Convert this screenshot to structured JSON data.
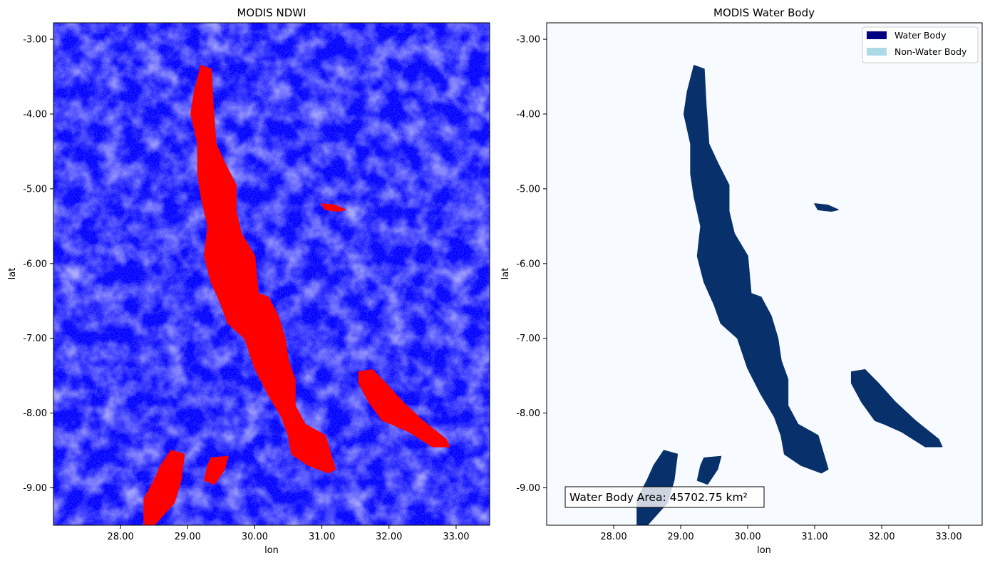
{
  "figure": {
    "panels": [
      {
        "title": "MODIS NDWI",
        "xlabel": "lon",
        "ylabel": "lat"
      },
      {
        "title": "MODIS Water Body",
        "xlabel": "lon",
        "ylabel": "lat"
      }
    ],
    "annotation": "Water Body Area: 45702.75 km²"
  },
  "chart_data": [
    {
      "type": "heatmap",
      "title": "MODIS NDWI",
      "xlabel": "lon",
      "ylabel": "lat",
      "xlim": [
        27.0,
        33.5
      ],
      "ylim": [
        -9.5,
        -2.78
      ],
      "xticks": [
        28.0,
        29.0,
        30.0,
        31.0,
        32.0,
        33.0
      ],
      "xtick_labels": [
        "28.00",
        "29.00",
        "30.00",
        "31.00",
        "32.00",
        "33.00"
      ],
      "yticks": [
        -3.0,
        -4.0,
        -5.0,
        -6.0,
        -7.0,
        -8.0,
        -9.0
      ],
      "ytick_labels": [
        "-3.00",
        "-4.00",
        "-5.00",
        "-6.00",
        "-7.00",
        "-8.00",
        "-9.00"
      ],
      "colormap": "bwr",
      "colors": {
        "low": "#0000ff",
        "mid": "#ffffff",
        "high": "#ff0000"
      },
      "grid": false,
      "water_bodies": [
        {
          "id": "lake-tanganyika",
          "outline": [
            [
              29.2,
              -3.35
            ],
            [
              29.35,
              -3.4
            ],
            [
              29.38,
              -3.9
            ],
            [
              29.42,
              -4.4
            ],
            [
              29.55,
              -4.65
            ],
            [
              29.72,
              -4.95
            ],
            [
              29.72,
              -5.3
            ],
            [
              29.8,
              -5.6
            ],
            [
              30.0,
              -5.9
            ],
            [
              30.05,
              -6.4
            ],
            [
              30.2,
              -6.45
            ],
            [
              30.35,
              -6.7
            ],
            [
              30.45,
              -7.0
            ],
            [
              30.5,
              -7.3
            ],
            [
              30.6,
              -7.55
            ],
            [
              30.6,
              -7.9
            ],
            [
              30.75,
              -8.15
            ],
            [
              31.05,
              -8.3
            ],
            [
              31.2,
              -8.75
            ],
            [
              31.1,
              -8.8
            ],
            [
              30.8,
              -8.7
            ],
            [
              30.55,
              -8.55
            ],
            [
              30.5,
              -8.3
            ],
            [
              30.4,
              -8.05
            ],
            [
              30.2,
              -7.75
            ],
            [
              30.0,
              -7.4
            ],
            [
              29.85,
              -7.0
            ],
            [
              29.6,
              -6.8
            ],
            [
              29.5,
              -6.55
            ],
            [
              29.35,
              -6.25
            ],
            [
              29.25,
              -5.9
            ],
            [
              29.3,
              -5.5
            ],
            [
              29.2,
              -5.1
            ],
            [
              29.15,
              -4.8
            ],
            [
              29.15,
              -4.4
            ],
            [
              29.05,
              -4.0
            ],
            [
              29.1,
              -3.7
            ]
          ]
        },
        {
          "id": "lake-rukwa",
          "outline": [
            [
              31.55,
              -7.45
            ],
            [
              31.75,
              -7.42
            ],
            [
              31.95,
              -7.6
            ],
            [
              32.2,
              -7.85
            ],
            [
              32.5,
              -8.1
            ],
            [
              32.85,
              -8.35
            ],
            [
              32.9,
              -8.45
            ],
            [
              32.65,
              -8.45
            ],
            [
              32.3,
              -8.25
            ],
            [
              32.05,
              -8.15
            ],
            [
              31.9,
              -8.1
            ],
            [
              31.7,
              -7.85
            ],
            [
              31.55,
              -7.6
            ]
          ]
        },
        {
          "id": "lake-mweru",
          "outline": [
            [
              28.75,
              -8.5
            ],
            [
              28.95,
              -8.55
            ],
            [
              28.9,
              -8.9
            ],
            [
              28.8,
              -9.2
            ],
            [
              28.65,
              -9.35
            ],
            [
              28.5,
              -9.5
            ],
            [
              28.35,
              -9.5
            ],
            [
              28.35,
              -9.15
            ],
            [
              28.5,
              -8.9
            ],
            [
              28.6,
              -8.7
            ]
          ]
        },
        {
          "id": "lake-mweru-wantipa",
          "outline": [
            [
              29.35,
              -8.6
            ],
            [
              29.6,
              -8.58
            ],
            [
              29.55,
              -8.75
            ],
            [
              29.4,
              -8.95
            ],
            [
              29.25,
              -8.9
            ],
            [
              29.3,
              -8.7
            ]
          ]
        },
        {
          "id": "lake-sagara",
          "outline": [
            [
              31.0,
              -5.2
            ],
            [
              31.2,
              -5.22
            ],
            [
              31.35,
              -5.28
            ],
            [
              31.25,
              -5.3
            ],
            [
              31.05,
              -5.28
            ]
          ]
        }
      ]
    },
    {
      "type": "heatmap",
      "title": "MODIS Water Body",
      "xlabel": "lon",
      "ylabel": "lat",
      "xlim": [
        27.0,
        33.5
      ],
      "ylim": [
        -9.5,
        -2.78
      ],
      "xticks": [
        28.0,
        29.0,
        30.0,
        31.0,
        32.0,
        33.0
      ],
      "xtick_labels": [
        "28.00",
        "29.00",
        "30.00",
        "31.00",
        "32.00",
        "33.00"
      ],
      "yticks": [
        -3.0,
        -4.0,
        -5.0,
        -6.0,
        -7.0,
        -8.0,
        -9.0
      ],
      "ytick_labels": [
        "-3.00",
        "-4.00",
        "-5.00",
        "-6.00",
        "-7.00",
        "-8.00",
        "-9.00"
      ],
      "categories": [
        "Water Body",
        "Non-Water Body"
      ],
      "colors": {
        "water": "#08306b",
        "non_water": "#f7fbff"
      },
      "legend": {
        "placement": "top-right",
        "entries": [
          {
            "label": "Water Body",
            "color": "#000080"
          },
          {
            "label": "Non-Water Body",
            "color": "#add8e6"
          }
        ]
      },
      "annotation": "Water Body Area: 45702.75 km²",
      "grid": false
    }
  ]
}
